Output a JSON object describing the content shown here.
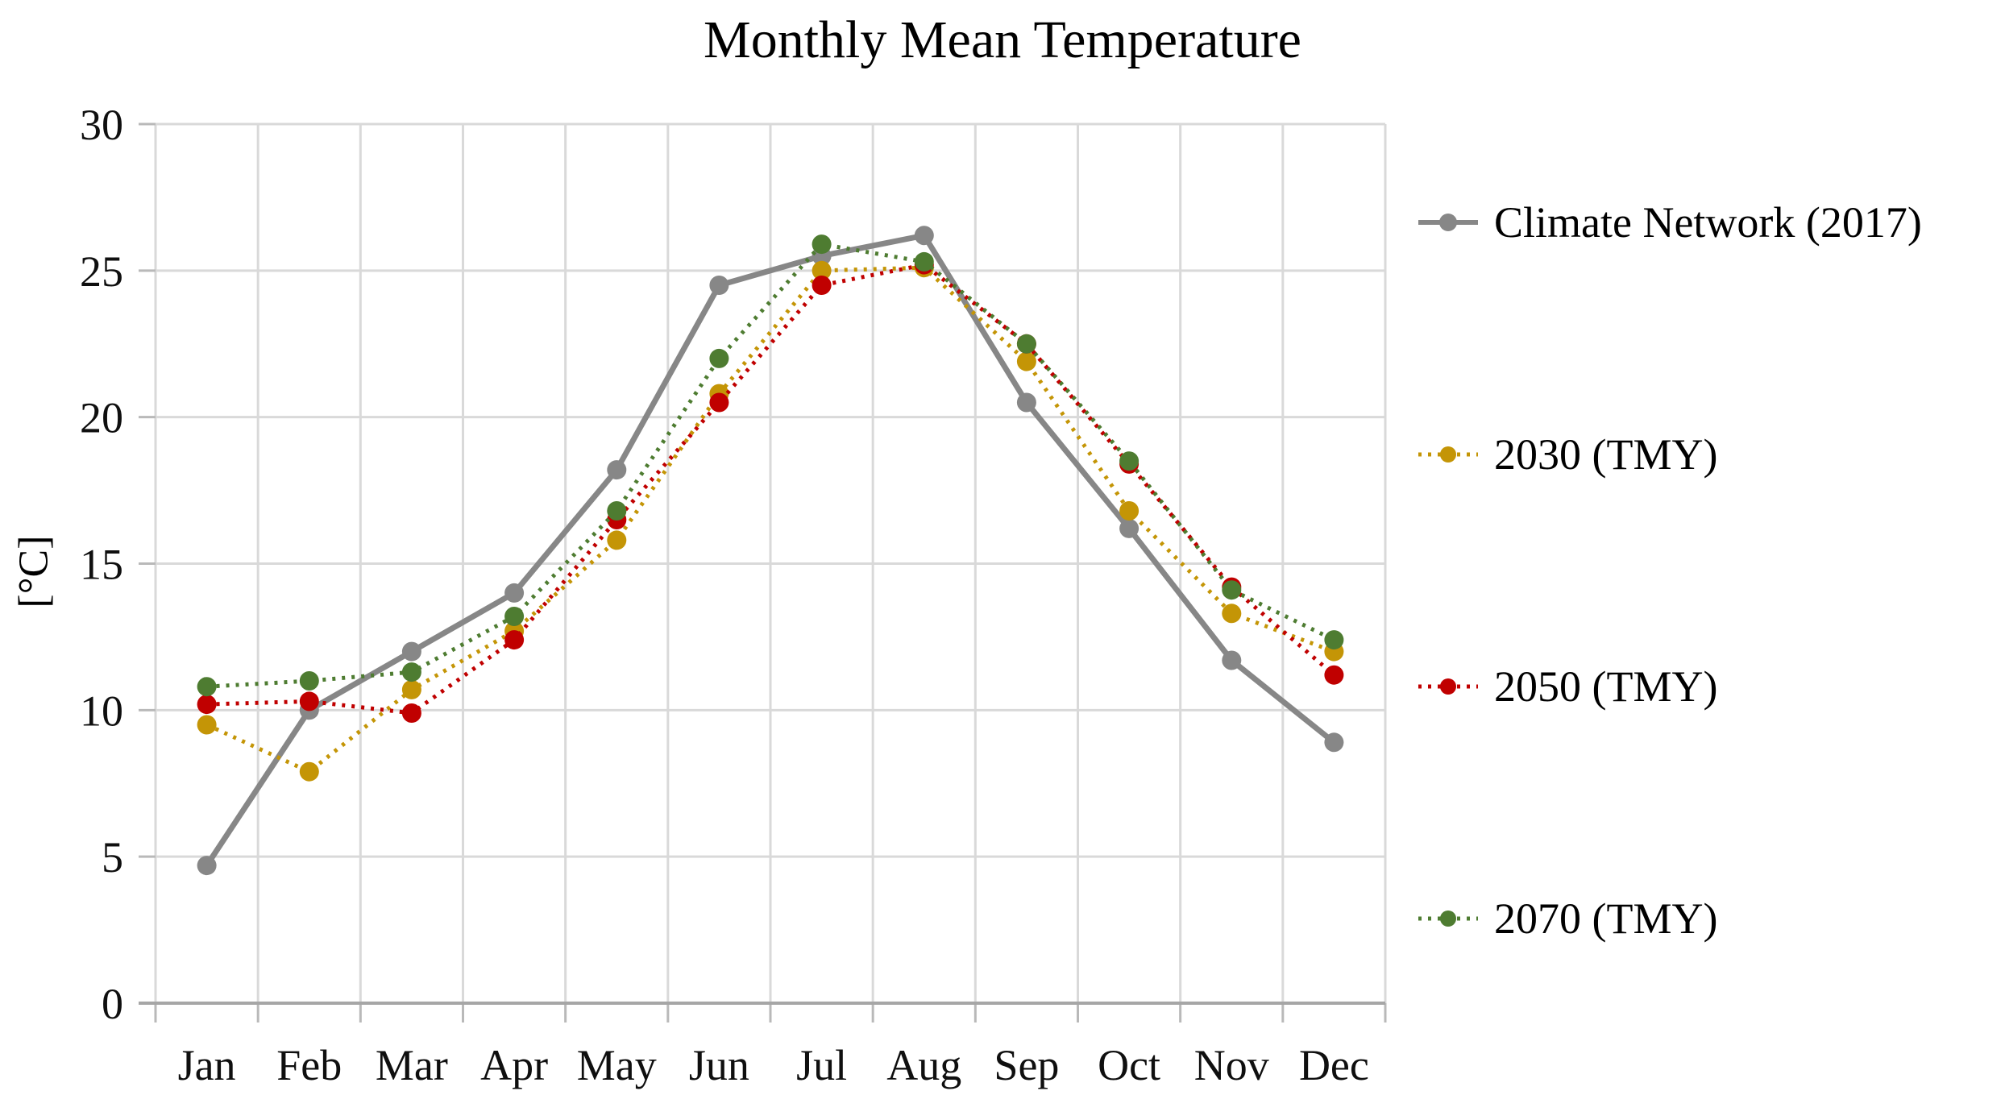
{
  "chart_data": {
    "type": "line",
    "title": "Monthly Mean Temperature",
    "ylabel": "[°C]",
    "xlabel": "",
    "ylim": [
      0,
      30
    ],
    "yticks": [
      0,
      5,
      10,
      15,
      20,
      25,
      30
    ],
    "grid": true,
    "legend_position": "right",
    "categories": [
      "Jan",
      "Feb",
      "Mar",
      "Apr",
      "May",
      "Jun",
      "Jul",
      "Aug",
      "Sep",
      "Oct",
      "Nov",
      "Dec"
    ],
    "series": [
      {
        "name": "Climate Network (2017)",
        "color": "#878787",
        "line_style": "solid",
        "dash": "none",
        "marker": "circle",
        "values": [
          4.7,
          10.0,
          12.0,
          14.0,
          18.2,
          24.5,
          25.5,
          26.2,
          20.5,
          16.2,
          11.7,
          8.9
        ]
      },
      {
        "name": "2030 (TMY)",
        "color": "#C49506",
        "line_style": "dotted",
        "dash": "4 8",
        "marker": "circle",
        "values": [
          9.5,
          7.9,
          10.7,
          12.7,
          15.8,
          20.8,
          25.0,
          25.1,
          21.9,
          16.8,
          13.3,
          12.0
        ]
      },
      {
        "name": "2050 (TMY)",
        "color": "#C00000",
        "line_style": "dotted",
        "dash": "4 8",
        "marker": "circle",
        "values": [
          10.2,
          10.3,
          9.9,
          12.4,
          16.5,
          20.5,
          24.5,
          25.2,
          22.5,
          18.4,
          14.2,
          11.2
        ]
      },
      {
        "name": "2070 (TMY)",
        "color": "#4E7C31",
        "line_style": "dotted",
        "dash": "4 8",
        "marker": "circle",
        "values": [
          10.8,
          11.0,
          11.3,
          13.2,
          16.8,
          22.0,
          25.9,
          25.3,
          22.5,
          18.5,
          14.1,
          12.4
        ]
      }
    ],
    "style_colors": {
      "gridline": "#d9d9d9",
      "tick": "#b9b9b9",
      "axis_line": "#a6a6a6",
      "text": "#0f0f0f"
    }
  }
}
